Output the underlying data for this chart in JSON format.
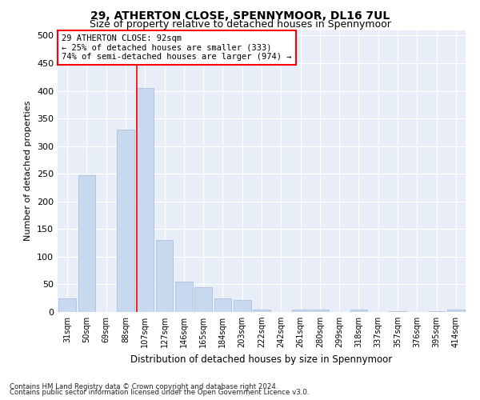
{
  "title": "29, ATHERTON CLOSE, SPENNYMOOR, DL16 7UL",
  "subtitle": "Size of property relative to detached houses in Spennymoor",
  "xlabel": "Distribution of detached houses by size in Spennymoor",
  "ylabel": "Number of detached properties",
  "bar_color": "#c8d8ee",
  "bar_edge_color": "#a0bcd8",
  "background_color": "#e8eef8",
  "categories": [
    "31sqm",
    "50sqm",
    "69sqm",
    "88sqm",
    "107sqm",
    "127sqm",
    "146sqm",
    "165sqm",
    "184sqm",
    "203sqm",
    "222sqm",
    "242sqm",
    "261sqm",
    "280sqm",
    "299sqm",
    "318sqm",
    "337sqm",
    "357sqm",
    "376sqm",
    "395sqm",
    "414sqm"
  ],
  "values": [
    25,
    248,
    0,
    330,
    405,
    130,
    55,
    45,
    25,
    22,
    5,
    0,
    5,
    5,
    0,
    5,
    0,
    2,
    0,
    2,
    5
  ],
  "ylim": [
    0,
    510
  ],
  "yticks": [
    0,
    50,
    100,
    150,
    200,
    250,
    300,
    350,
    400,
    450,
    500
  ],
  "property_label": "29 ATHERTON CLOSE: 92sqm",
  "annotation_line1": "← 25% of detached houses are smaller (333)",
  "annotation_line2": "74% of semi-detached houses are larger (974) →",
  "vline_x_index": 3.58,
  "footnote1": "Contains HM Land Registry data © Crown copyright and database right 2024.",
  "footnote2": "Contains public sector information licensed under the Open Government Licence v3.0.",
  "title_fontsize": 10,
  "subtitle_fontsize": 9,
  "xlabel_fontsize": 8.5,
  "ylabel_fontsize": 8
}
